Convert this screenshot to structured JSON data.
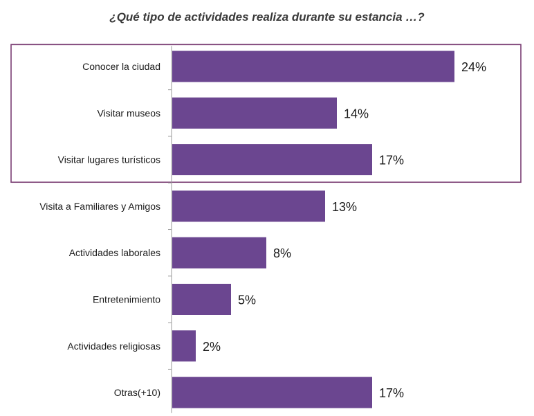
{
  "chart_data": {
    "type": "bar",
    "orientation": "horizontal",
    "title": "¿Qué tipo de actividades realiza durante su estancia …?",
    "categories": [
      "Conocer la ciudad",
      "Visitar museos",
      "Visitar lugares turísticos",
      "Visita a Familiares y Amigos",
      "Actividades laborales",
      "Entretenimiento",
      "Actividades religiosas",
      "Otras(+10)"
    ],
    "values": [
      24,
      14,
      17,
      13,
      8,
      5,
      2,
      17
    ],
    "value_labels": [
      "24%",
      "14%",
      "17%",
      "13%",
      "8%",
      "5%",
      "2%",
      "17%"
    ],
    "unit": "%",
    "xlim": [
      0,
      30
    ],
    "grid": false,
    "legend": "none",
    "highlight_box_categories": [
      "Conocer la ciudad",
      "Visitar museos",
      "Visitar lugares turísticos"
    ],
    "colors": {
      "bar": "#6b4690",
      "highlight_box": "#7a3d73",
      "axis": "#9a9a9a",
      "text": "#1a1a1a",
      "title": "#3a3a3a"
    }
  }
}
